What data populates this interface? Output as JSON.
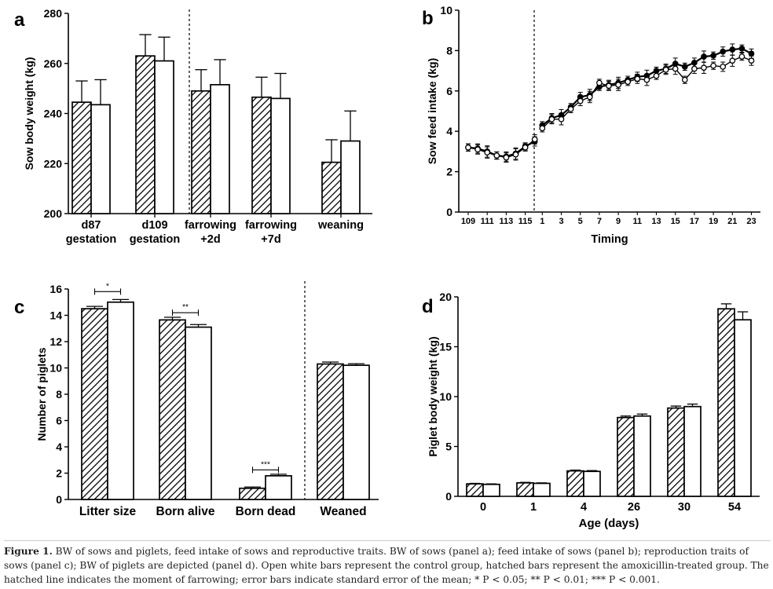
{
  "colors": {
    "axis": "#000000",
    "bar_fill_control": "#ffffff",
    "hatch": "#000000"
  },
  "chart_data": [
    {
      "panel": "a",
      "type": "bar",
      "ylabel": "Sow body weight (kg)",
      "ylim": [
        200,
        280
      ],
      "yticks": [
        200,
        220,
        240,
        260,
        280
      ],
      "categories": [
        [
          "d87",
          "gestation"
        ],
        [
          "d109",
          "gestation"
        ],
        [
          "farrowing",
          "+2d"
        ],
        [
          "farrowing",
          "+7d"
        ],
        [
          "weaning"
        ]
      ],
      "divider_after_category": 1,
      "series": [
        {
          "name": "amoxicillin-treated",
          "pattern": "hatched",
          "values": [
            244.5,
            263,
            249,
            246.5,
            220.5
          ],
          "errors": [
            8.5,
            8.5,
            8.5,
            8,
            9
          ]
        },
        {
          "name": "control",
          "pattern": "open",
          "values": [
            243.5,
            261,
            251.5,
            246,
            229
          ],
          "errors": [
            10,
            9.5,
            10,
            10,
            12
          ]
        }
      ]
    },
    {
      "panel": "b",
      "type": "line",
      "ylabel": "Sow feed intake (kg)",
      "xlabel": "Timing",
      "ylim": [
        0,
        10
      ],
      "yticks": [
        0,
        2,
        4,
        6,
        8,
        10
      ],
      "xticklabels": [
        "109",
        "111",
        "113",
        "115",
        "1",
        "3",
        "5",
        "7",
        "9",
        "11",
        "13",
        "15",
        "17",
        "19",
        "21",
        "23"
      ],
      "pre_days": [
        109,
        110,
        111,
        112,
        113,
        114,
        115,
        116
      ],
      "post_days": [
        1,
        2,
        3,
        4,
        5,
        6,
        7,
        8,
        9,
        10,
        11,
        12,
        13,
        14,
        15,
        16,
        17,
        18,
        19,
        20,
        21,
        22,
        23
      ],
      "series": [
        {
          "name": "amoxicillin-treated",
          "marker": "filled",
          "pre": [
            3.2,
            3.15,
            3.0,
            2.8,
            2.75,
            2.9,
            3.25,
            3.5
          ],
          "post": [
            4.3,
            4.65,
            4.8,
            5.2,
            5.7,
            5.8,
            6.2,
            6.3,
            6.4,
            6.55,
            6.7,
            6.75,
            7.0,
            7.1,
            7.35,
            7.2,
            7.4,
            7.7,
            7.75,
            7.95,
            8.05,
            8.1,
            7.85
          ]
        },
        {
          "name": "control",
          "marker": "open",
          "pre": [
            3.2,
            3.1,
            2.95,
            2.8,
            2.7,
            2.85,
            3.2,
            3.6
          ],
          "post": [
            4.15,
            4.6,
            4.6,
            5.1,
            5.5,
            5.7,
            6.4,
            6.25,
            6.3,
            6.45,
            6.6,
            6.55,
            6.75,
            7.05,
            7.1,
            6.55,
            7.1,
            7.15,
            7.25,
            7.2,
            7.5,
            7.7,
            7.5
          ]
        }
      ]
    },
    {
      "panel": "c",
      "type": "bar",
      "ylabel": "Number of piglets",
      "ylim": [
        0,
        16
      ],
      "yticks": [
        0,
        2,
        4,
        6,
        8,
        10,
        12,
        14,
        16
      ],
      "categories": [
        "Litter size",
        "Born alive",
        "Born dead",
        "Weaned"
      ],
      "divider_after_category": 2,
      "series": [
        {
          "name": "amoxicillin-treated",
          "pattern": "hatched",
          "values": [
            14.5,
            13.65,
            0.85,
            10.3
          ],
          "errors": [
            0.18,
            0.2,
            0.1,
            0.15
          ]
        },
        {
          "name": "control",
          "pattern": "open",
          "values": [
            15.0,
            13.1,
            1.8,
            10.2
          ],
          "errors": [
            0.2,
            0.2,
            0.12,
            0.12
          ]
        }
      ],
      "significance": [
        {
          "category": 0,
          "label": "*",
          "at": 15.8
        },
        {
          "category": 1,
          "label": "**",
          "at": 14.2
        },
        {
          "category": 2,
          "label": "***",
          "at": 2.25
        }
      ]
    },
    {
      "panel": "d",
      "type": "bar",
      "ylabel": "Piglet body weight (kg)",
      "xlabel": "Age (days)",
      "ylim": [
        0,
        20
      ],
      "yticks": [
        0,
        5,
        10,
        15,
        20
      ],
      "categories": [
        "0",
        "1",
        "4",
        "26",
        "30",
        "54"
      ],
      "series": [
        {
          "name": "amoxicillin-treated",
          "pattern": "hatched",
          "values": [
            1.25,
            1.35,
            2.55,
            7.9,
            8.85,
            18.8
          ],
          "errors": [
            0.05,
            0.05,
            0.08,
            0.15,
            0.2,
            0.5
          ]
        },
        {
          "name": "control",
          "pattern": "open",
          "values": [
            1.2,
            1.3,
            2.5,
            8.05,
            9.0,
            17.7
          ],
          "errors": [
            0.05,
            0.05,
            0.08,
            0.2,
            0.25,
            0.8
          ]
        }
      ]
    }
  ],
  "caption": {
    "label": "Figure 1.",
    "text": " BW of sows and piglets, feed intake of sows and reproductive traits. BW of sows (panel a); feed intake of sows (panel b); reproduction traits of sows (panel c); BW of piglets are depicted (panel d). Open white bars represent the control group, hatched bars represent the amoxicillin-treated group. The hatched line indicates the moment of farrowing; error bars indicate standard error of the mean; * P < 0.05; ** P < 0.01; *** P < 0.001."
  }
}
